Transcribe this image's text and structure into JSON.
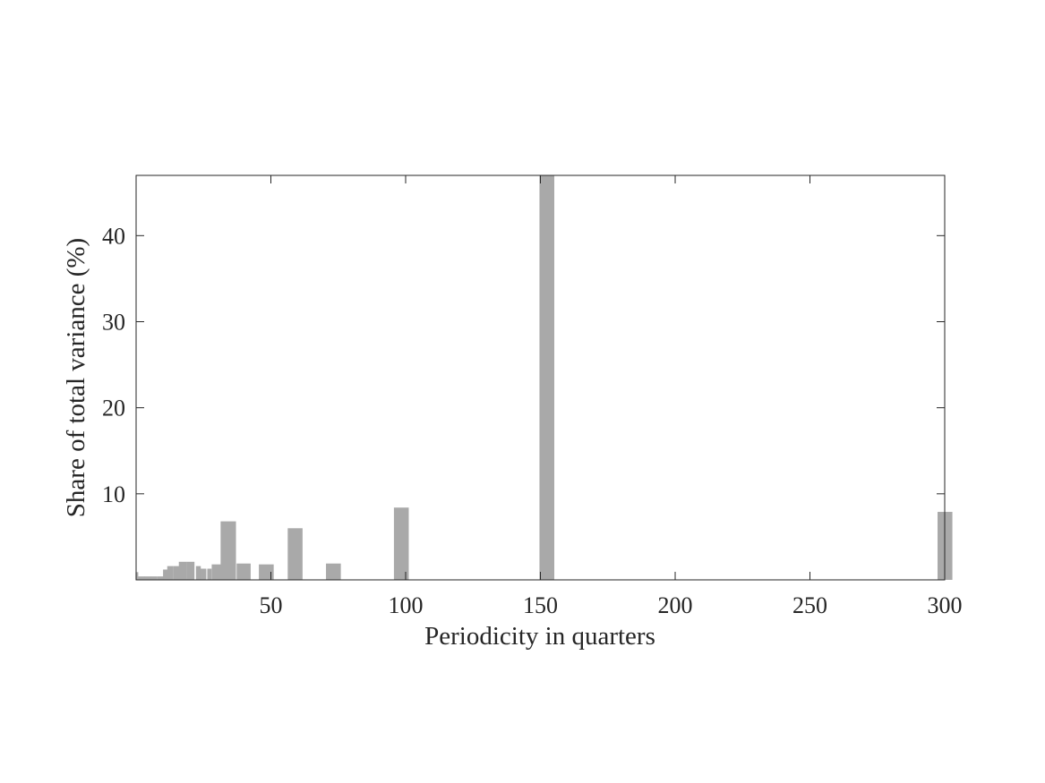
{
  "chart_data": {
    "type": "bar",
    "xlabel": "Periodicity in quarters",
    "ylabel": "Share of total variance (%)",
    "xlim": [
      0,
      300
    ],
    "ylim": [
      0,
      47
    ],
    "xticks": [
      50,
      100,
      150,
      200,
      250,
      300
    ],
    "yticks": [
      10,
      20,
      30,
      40
    ],
    "grid": false,
    "legend": "none",
    "bar_color": "#a9a9a9",
    "bars": [
      {
        "x": 0.3,
        "width": 1,
        "value": 0.9
      },
      {
        "x": 2,
        "width": 2.5,
        "value": 0.4
      },
      {
        "x": 4.4,
        "width": 2.5,
        "value": 0.4
      },
      {
        "x": 6.7,
        "width": 2.3,
        "value": 0.4
      },
      {
        "x": 9,
        "width": 2.3,
        "value": 0.4
      },
      {
        "x": 10.9,
        "width": 1.8,
        "value": 1.2
      },
      {
        "x": 12.7,
        "width": 2.3,
        "value": 1.6
      },
      {
        "x": 15,
        "width": 2.3,
        "value": 1.6
      },
      {
        "x": 17.3,
        "width": 2.9,
        "value": 2.1
      },
      {
        "x": 20.2,
        "width": 2.9,
        "value": 2.1
      },
      {
        "x": 23.1,
        "width": 1.8,
        "value": 1.6
      },
      {
        "x": 24.9,
        "width": 2.3,
        "value": 1.3
      },
      {
        "x": 27.2,
        "width": 1.6,
        "value": 1.3
      },
      {
        "x": 30.1,
        "width": 4.1,
        "value": 1.8
      },
      {
        "x": 34.2,
        "width": 5.7,
        "value": 6.8
      },
      {
        "x": 39.9,
        "width": 5.2,
        "value": 1.9
      },
      {
        "x": 48.3,
        "width": 5.5,
        "value": 1.8
      },
      {
        "x": 59.0,
        "width": 5.5,
        "value": 6.0
      },
      {
        "x": 73.2,
        "width": 5.5,
        "value": 1.9
      },
      {
        "x": 98.4,
        "width": 5.5,
        "value": 8.4
      },
      {
        "x": 152.4,
        "width": 5.5,
        "value": 47
      },
      {
        "x": 300.1,
        "width": 5.5,
        "value": 7.9
      }
    ]
  }
}
